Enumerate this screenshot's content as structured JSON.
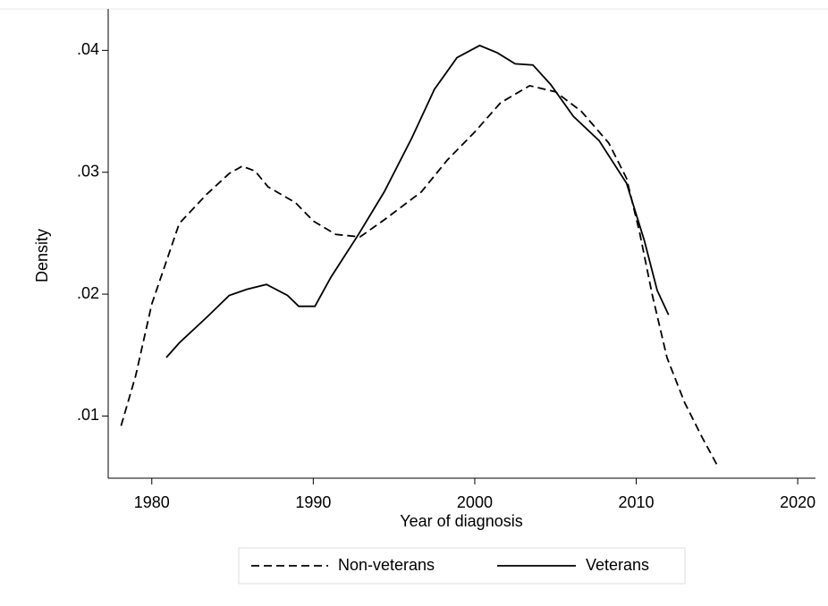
{
  "chart_data": {
    "type": "line",
    "xlabel": "Year of diagnosis",
    "ylabel": "Density",
    "xlim": [
      1977.3,
      2021.1
    ],
    "ylim": [
      0.0049,
      0.0434
    ],
    "xticks": [
      1980,
      1990,
      2000,
      2010,
      2020
    ],
    "yticks": [
      {
        "value": 0.01,
        "label": ".01"
      },
      {
        "value": 0.02,
        "label": ".02"
      },
      {
        "value": 0.03,
        "label": ".03"
      },
      {
        "value": 0.04,
        "label": ".04"
      }
    ],
    "legend": "bottom",
    "series": [
      {
        "name": "Non-veterans",
        "color": "#000000",
        "style": "dashed",
        "x": [
          1978.1,
          1979,
          1980,
          1981.7,
          1983.4,
          1984.8,
          1985.6,
          1986.4,
          1987.2,
          1988.9,
          1990,
          1991.4,
          1992.9,
          1994.4,
          1996.7,
          1998.3,
          2000,
          2001.6,
          2003.4,
          2005,
          2006.6,
          2008.3,
          2009.4,
          2010.2,
          2011,
          2011.9,
          2013,
          2014.1,
          2015
        ],
        "values": [
          0.0092,
          0.0133,
          0.0192,
          0.0258,
          0.0282,
          0.0299,
          0.0305,
          0.0301,
          0.0288,
          0.0275,
          0.026,
          0.0249,
          0.0247,
          0.0261,
          0.0284,
          0.031,
          0.0333,
          0.0357,
          0.0371,
          0.0366,
          0.035,
          0.0324,
          0.0295,
          0.0251,
          0.0199,
          0.0148,
          0.0111,
          0.0082,
          0.006
        ]
      },
      {
        "name": "Veterans",
        "color": "#000000",
        "style": "solid",
        "x": [
          1980.9,
          1981.7,
          1983.4,
          1984.8,
          1985.9,
          1987.1,
          1988.4,
          1989.1,
          1990.1,
          1991.1,
          1992.8,
          1994.4,
          1996.1,
          1997.5,
          1998.9,
          2000.3,
          2001.4,
          2002.5,
          2003.6,
          2004.7,
          2006.1,
          2007.7,
          2009.4,
          2010.5,
          2011.3,
          2012
        ],
        "values": [
          0.0148,
          0.016,
          0.0181,
          0.0199,
          0.0204,
          0.0208,
          0.0199,
          0.019,
          0.019,
          0.0214,
          0.0249,
          0.0284,
          0.0328,
          0.0368,
          0.0394,
          0.0404,
          0.0398,
          0.0389,
          0.0388,
          0.0372,
          0.0346,
          0.0326,
          0.0291,
          0.0244,
          0.0203,
          0.0183
        ]
      }
    ]
  }
}
